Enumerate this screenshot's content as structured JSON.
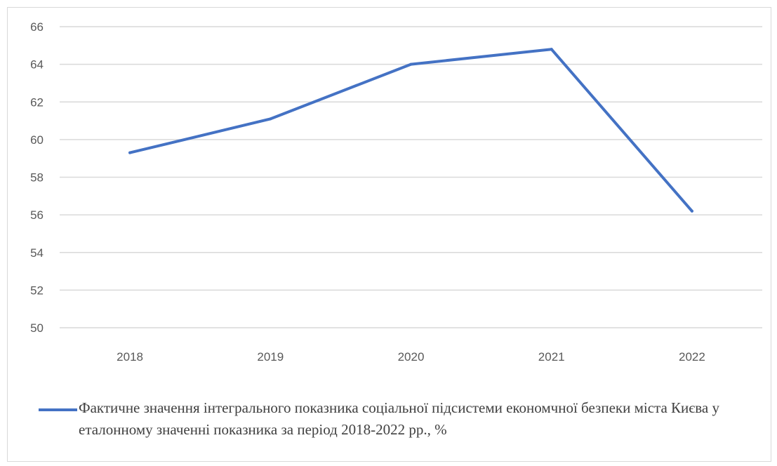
{
  "chart_data": {
    "type": "line",
    "categories": [
      "2018",
      "2019",
      "2020",
      "2021",
      "2022"
    ],
    "series": [
      {
        "name": "Фактичне значення інтегрального показника соціальної підсистеми економчної безпеки міста Києва у еталонному значенні показника за період 2018-2022 рр., %",
        "values": [
          59.3,
          61.1,
          64.0,
          64.8,
          56.2
        ],
        "color": "#4472c4"
      }
    ],
    "yticks": [
      "50",
      "52",
      "54",
      "56",
      "58",
      "60",
      "62",
      "64",
      "66"
    ],
    "ylim": [
      50,
      66
    ],
    "grid": true,
    "legend_position": "bottom",
    "title": "",
    "xlabel": "",
    "ylabel": ""
  }
}
